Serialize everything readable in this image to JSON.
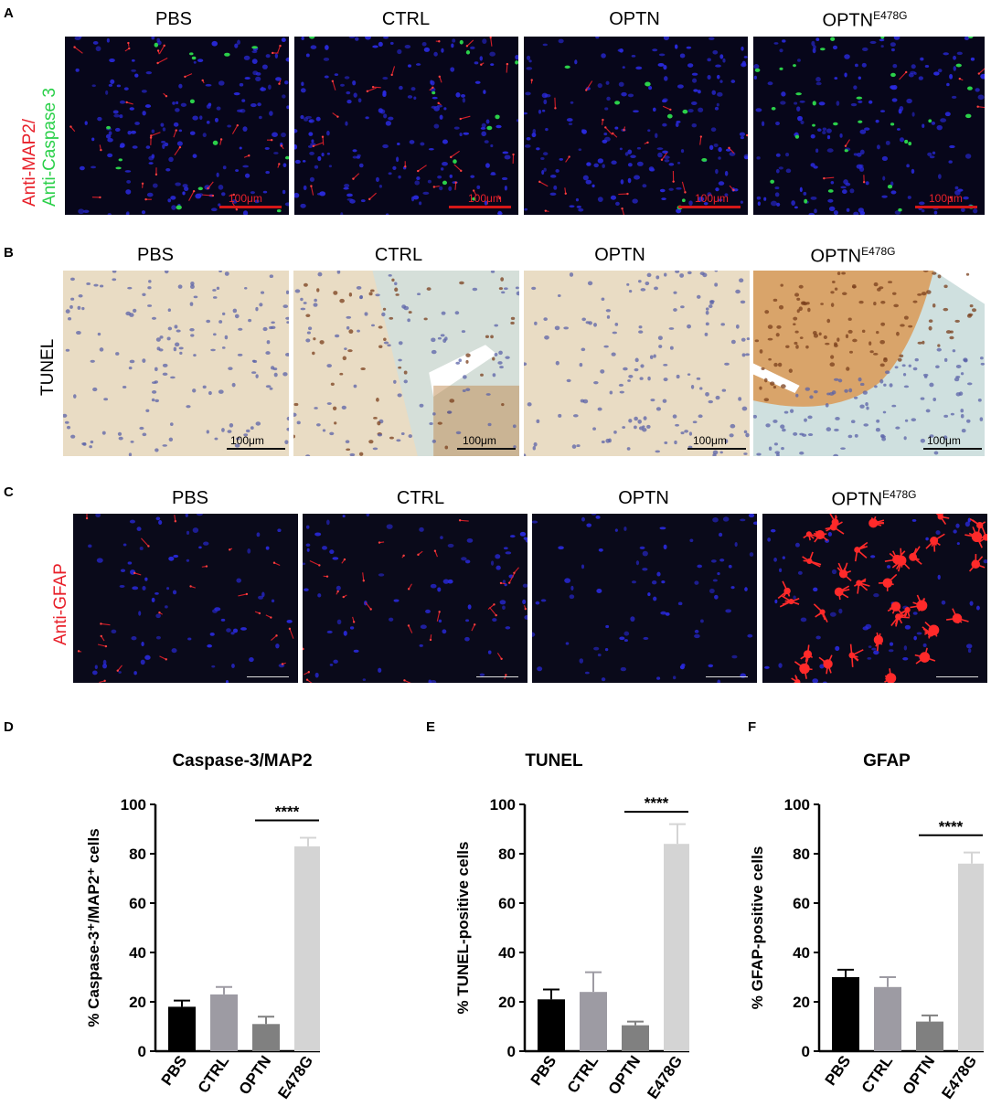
{
  "panels": {
    "A": {
      "letter": "A",
      "row_label_line1": "Anti-MAP2/",
      "row_label_line2": "Anti-Caspase 3",
      "titles": [
        "PBS",
        "CTRL",
        "OPTN",
        "OPTN"
      ],
      "title_sup": "E478G",
      "scale_label": "100μm"
    },
    "B": {
      "letter": "B",
      "row_label": "TUNEL",
      "titles": [
        "PBS",
        "CTRL",
        "OPTN",
        "OPTN"
      ],
      "title_sup": "E478G",
      "scale_label": "100μm"
    },
    "C": {
      "letter": "C",
      "row_label": "Anti-GFAP",
      "titles": [
        "PBS",
        "CTRL",
        "OPTN",
        "OPTN"
      ],
      "title_sup": "E478G"
    }
  },
  "colors": {
    "PBS": "#000000",
    "CTRL": "#9d9ba3",
    "OPTN": "#808080",
    "E478G": "#d4d4d4",
    "red_stain": "#e8202a",
    "green_stain": "#2bd04a",
    "blue_stain": "#2a2ae0"
  },
  "chart_data": [
    {
      "panel": "D",
      "type": "bar",
      "title": "Caspase-3/MAP2",
      "ylabel": "% Caspase-3⁺/MAP2⁺ cells",
      "categories": [
        "PBS",
        "CTRL",
        "OPTN",
        "E478G"
      ],
      "values": [
        18,
        23,
        11,
        83
      ],
      "errors": [
        2.5,
        3,
        3,
        3.5
      ],
      "ylim": [
        0,
        100
      ],
      "yticks": [
        "0",
        "20",
        "40",
        "60",
        "80",
        "100"
      ],
      "significance": {
        "between": [
          "OPTN",
          "E478G"
        ],
        "label": "****"
      }
    },
    {
      "panel": "E",
      "type": "bar",
      "title": "TUNEL",
      "ylabel": "% TUNEL-positive cells",
      "categories": [
        "PBS",
        "CTRL",
        "OPTN",
        "E478G"
      ],
      "values": [
        21,
        24,
        10.5,
        84
      ],
      "errors": [
        4,
        8,
        1.5,
        8
      ],
      "ylim": [
        0,
        100
      ],
      "yticks": [
        "0",
        "20",
        "40",
        "60",
        "80",
        "100"
      ],
      "significance": {
        "between": [
          "OPTN",
          "E478G"
        ],
        "label": "****"
      }
    },
    {
      "panel": "F",
      "type": "bar",
      "title": "GFAP",
      "ylabel": "% GFAP-positive cells",
      "categories": [
        "PBS",
        "CTRL",
        "OPTN",
        "E478G"
      ],
      "values": [
        30,
        26,
        12,
        76
      ],
      "errors": [
        3,
        4,
        2.5,
        4.5
      ],
      "ylim": [
        0,
        100
      ],
      "yticks": [
        "0",
        "20",
        "40",
        "60",
        "80",
        "100"
      ],
      "significance": {
        "between": [
          "OPTN",
          "E478G"
        ],
        "label": "****"
      }
    }
  ]
}
